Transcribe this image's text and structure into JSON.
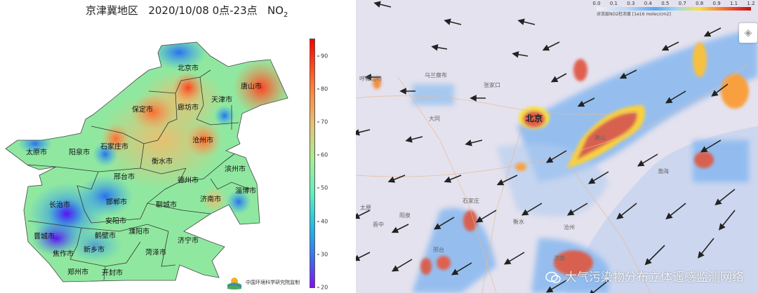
{
  "left_panel": {
    "title": {
      "region": "京津冀地区",
      "date": "2020/10/08",
      "hours": "0点-23点",
      "pollutant": "NO",
      "pollutant_sub": "2"
    },
    "cities": [
      "北京市",
      "唐山市",
      "天津市",
      "廊坊市",
      "保定市",
      "沧州市",
      "太原市",
      "阳泉市",
      "石家庄市",
      "衡水市",
      "邢台市",
      "德州市",
      "滨州市",
      "淄博市",
      "济南市",
      "聊城市",
      "邯郸市",
      "长治市",
      "安阳市",
      "鹤壁市",
      "濮阳市",
      "晋城市",
      "新乡市",
      "菏泽市",
      "济宁市",
      "焦作市",
      "郑州市",
      "开封市"
    ],
    "colorbar": {
      "ticks": [
        "90",
        "80",
        "70",
        "60",
        "50",
        "40",
        "30",
        "20"
      ],
      "min": 20,
      "max": 95
    },
    "credit": "中国环境科学研究院监制"
  },
  "right_panel": {
    "colorbar": {
      "ticks": [
        "0.0",
        "0.1",
        "0.3",
        "0.4",
        "0.5",
        "0.7",
        "0.8",
        "0.9",
        "1.1",
        "1.2"
      ],
      "label": "对流层NO2柱浓度 [1e16 molec/cm2]"
    },
    "labels": {
      "hohhot": "呼和浩特",
      "ulanqab": "乌兰察布",
      "zhangjiakou": "张家口",
      "datong": "大同",
      "beijing": "北京",
      "tangshan": "唐山",
      "bohai": "渤海",
      "shijiazhuang": "石家庄",
      "taiyuan": "太原",
      "jinzhong": "晋中",
      "yangquan": "阳泉",
      "hengshui": "衡水",
      "cangzhou": "沧州",
      "xingtai": "邢台",
      "jinan": "济南"
    },
    "watermark": "大气污染物分布立体遥感监测网络",
    "layers_button": "layers-icon"
  }
}
